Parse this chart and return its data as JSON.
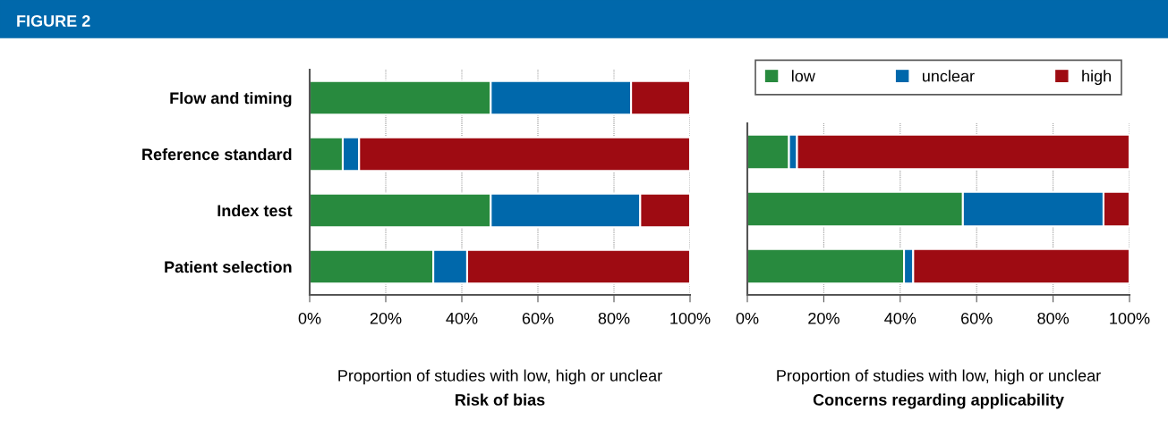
{
  "chart_data": [
    {
      "type": "bar",
      "orientation": "horizontal",
      "stacked": true,
      "title": "FIGURE 2",
      "categories": [
        "Flow and timing",
        "Reference standard",
        "Index test",
        "Patient selection"
      ],
      "series": [
        {
          "color": "#288a3e",
          "values": [
            47.6,
            8.7,
            47.6,
            32.5
          ]
        },
        {
          "color": "#0068ab",
          "values": [
            36.9,
            4.3,
            39.3,
            8.9
          ]
        },
        {
          "color": "#9e0b12",
          "values": [
            15.5,
            87.0,
            13.1,
            58.6
          ]
        }
      ],
      "xlim": [
        0,
        100
      ],
      "xticks": [
        {
          "value": 0,
          "label": "0%"
        },
        {
          "value": 20,
          "label": "20%"
        },
        {
          "value": 40,
          "label": "40%"
        },
        {
          "value": 60,
          "label": "60%"
        },
        {
          "value": 80,
          "label": "80%"
        },
        {
          "value": 100,
          "label": "100%"
        }
      ],
      "xlabel": "Proportion of studies with low, high or unclear",
      "annotations": [
        "Risk of bias"
      ],
      "grid": "x"
    },
    {
      "type": "bar",
      "orientation": "horizontal",
      "stacked": true,
      "categories": [
        null,
        null,
        null
      ],
      "series": [
        {
          "name": "low",
          "color": "#288a3e",
          "values": [
            10.9,
            56.4,
            41.0
          ]
        },
        {
          "name": "unclear",
          "color": "#0068ab",
          "values": [
            2.1,
            36.8,
            2.4
          ]
        },
        {
          "name": "high",
          "color": "#9e0b12",
          "values": [
            87.0,
            6.8,
            56.6
          ]
        }
      ],
      "xlim": [
        0,
        100
      ],
      "xticks": [
        {
          "value": 0,
          "label": "0%"
        },
        {
          "value": 20,
          "label": "20%"
        },
        {
          "value": 40,
          "label": "40%"
        },
        {
          "value": 60,
          "label": "60%"
        },
        {
          "value": 80,
          "label": "80%"
        },
        {
          "value": 100,
          "label": "100%"
        }
      ],
      "xlabel": "Proportion of studies with low, high or unclear",
      "annotations": [
        "Concerns regarding applicability"
      ],
      "tick_labels": "x",
      "grid": "x",
      "legend": "top"
    }
  ]
}
